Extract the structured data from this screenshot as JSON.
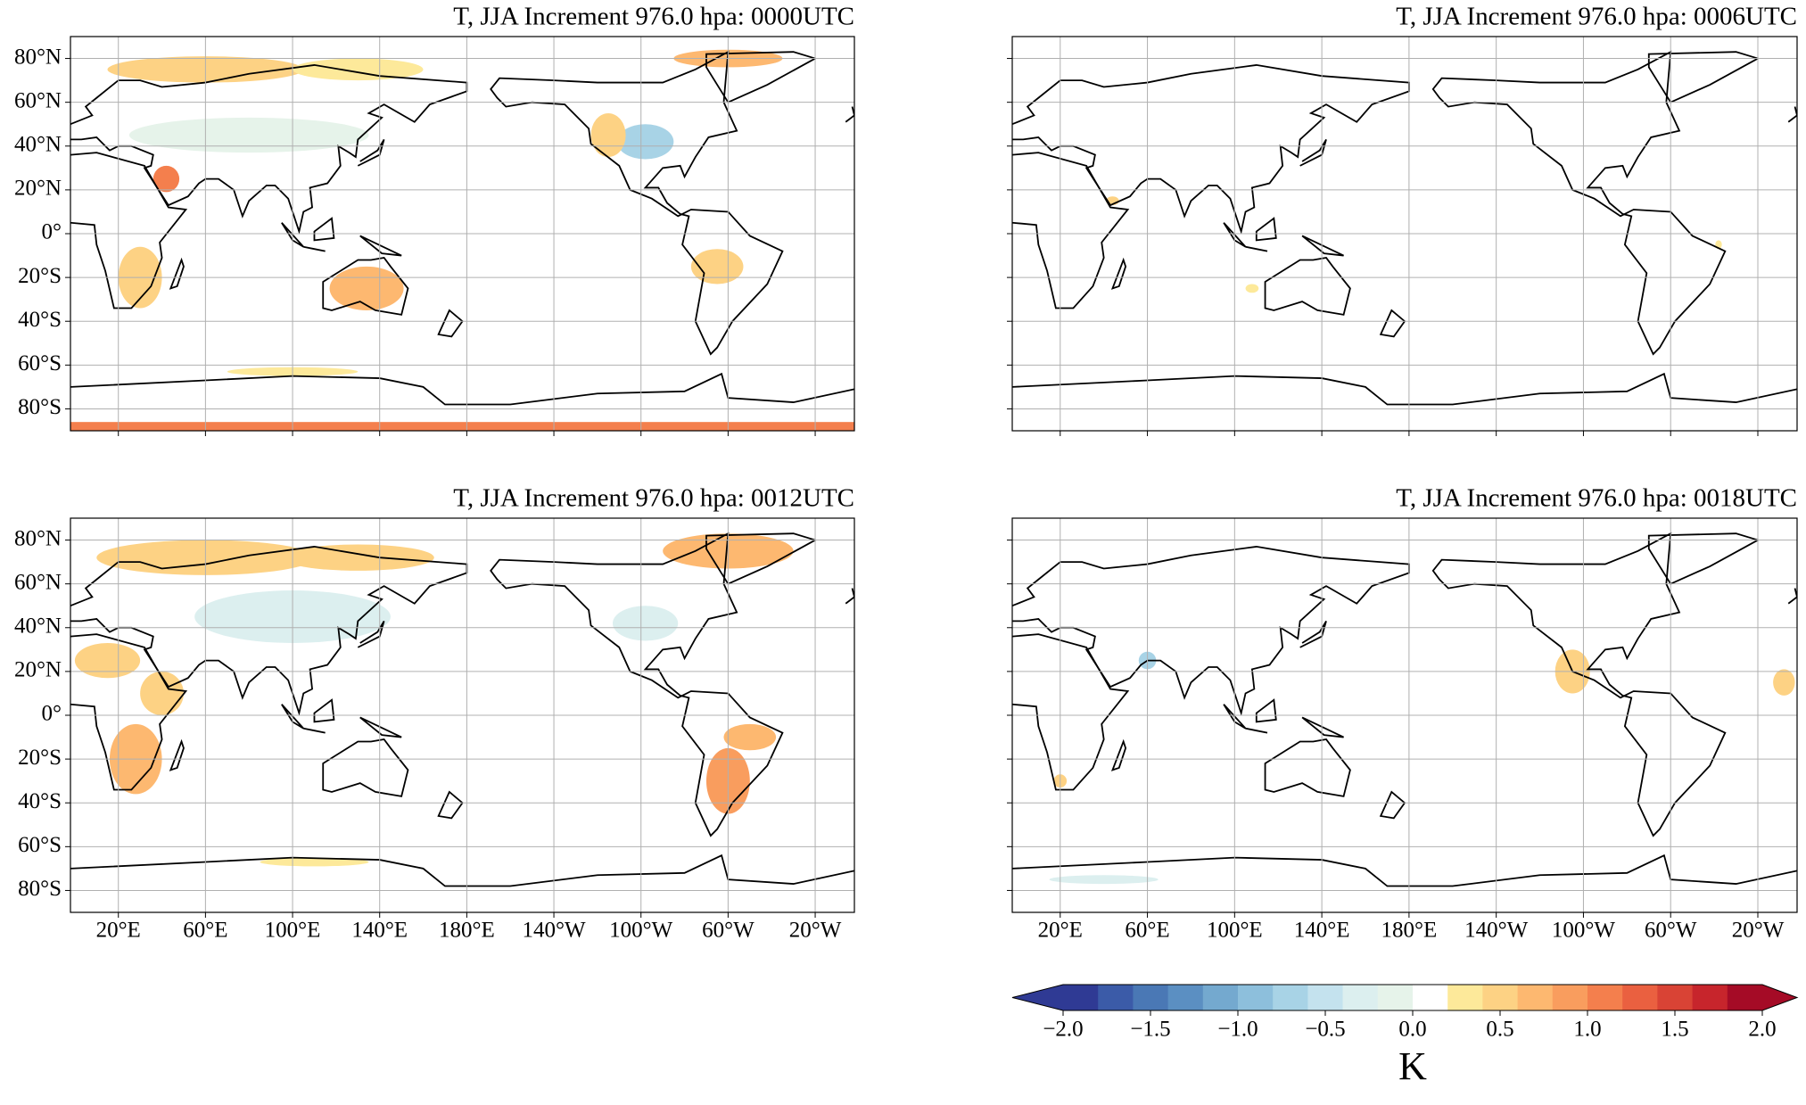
{
  "panels": [
    {
      "title": "T, JJA Increment 976.0 hpa: 0000UTC"
    },
    {
      "title": "T, JJA Increment 976.0 hpa: 0006UTC"
    },
    {
      "title": "T, JJA Increment 976.0 hpa: 0012UTC"
    },
    {
      "title": "T, JJA Increment 976.0 hpa: 0018UTC"
    }
  ],
  "lon_range": [
    -2,
    358
  ],
  "lat_range": [
    -90,
    90
  ],
  "lat_ticks": [
    {
      "value": 80,
      "label": "80°N"
    },
    {
      "value": 60,
      "label": "60°N"
    },
    {
      "value": 40,
      "label": "40°N"
    },
    {
      "value": 20,
      "label": "20°N"
    },
    {
      "value": 0,
      "label": "0°"
    },
    {
      "value": -20,
      "label": "20°S"
    },
    {
      "value": -40,
      "label": "40°S"
    },
    {
      "value": -60,
      "label": "60°S"
    },
    {
      "value": -80,
      "label": "80°S"
    }
  ],
  "lon_ticks": [
    {
      "value": 20,
      "label": "20°E"
    },
    {
      "value": 60,
      "label": "60°E"
    },
    {
      "value": 100,
      "label": "100°E"
    },
    {
      "value": 140,
      "label": "140°E"
    },
    {
      "value": 180,
      "label": "180°E"
    },
    {
      "value": 220,
      "label": "140°W"
    },
    {
      "value": 260,
      "label": "100°W"
    },
    {
      "value": 300,
      "label": "60°W"
    },
    {
      "value": 340,
      "label": "20°W"
    }
  ],
  "colorbar": {
    "range": [
      -2,
      2
    ],
    "label": "K",
    "ticks": [
      {
        "value": -2,
        "label": "−2.0"
      },
      {
        "value": -1.5,
        "label": "−1.5"
      },
      {
        "value": -1,
        "label": "−1.0"
      },
      {
        "value": -0.5,
        "label": "−0.5"
      },
      {
        "value": 0,
        "label": "0.0"
      },
      {
        "value": 0.5,
        "label": "0.5"
      },
      {
        "value": 1,
        "label": "1.0"
      },
      {
        "value": 1.5,
        "label": "1.5"
      },
      {
        "value": 2,
        "label": "2.0"
      }
    ],
    "colors": [
      "#2f3a94",
      "#3b5ba8",
      "#4a78b5",
      "#5b8fc2",
      "#74a9cf",
      "#8dbfdc",
      "#a8d3e6",
      "#c4e2ee",
      "#dcefef",
      "#e6f3ea",
      "#ffffff",
      "#fde99a",
      "#fdd284",
      "#fdb870",
      "#f99d5e",
      "#f47f4d",
      "#ea6040",
      "#d94335",
      "#c7252c",
      "#a50b26"
    ]
  }
}
